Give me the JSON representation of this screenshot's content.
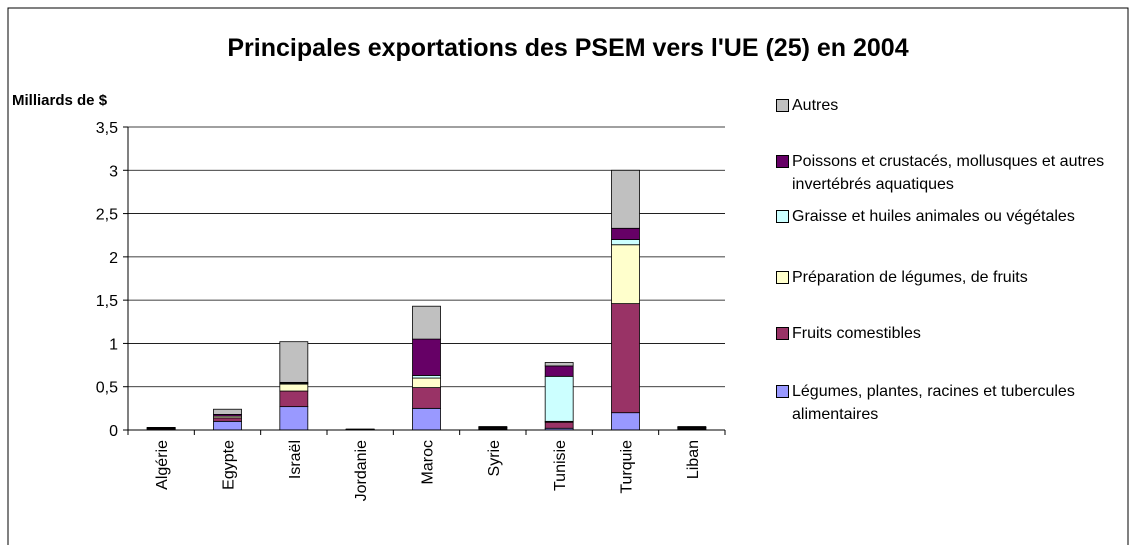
{
  "chart_data": {
    "type": "stacked_bar",
    "title": "Principales exportations des PSEM vers l'UE (25) en 2004",
    "y_label": "Milliards de $",
    "categories": [
      "Algérie",
      "Egypte",
      "Israël",
      "Jordanie",
      "Maroc",
      "Syrie",
      "Tunisie",
      "Turquie",
      "Liban"
    ],
    "series": [
      {
        "name": "Légumes, plantes, racines et tubercules alimentaires",
        "color": "#9999ff",
        "values": [
          0.005,
          0.1,
          0.27,
          0.003,
          0.25,
          0.01,
          0.02,
          0.2,
          0.01
        ]
      },
      {
        "name": "Fruits comestibles",
        "color": "#993366",
        "values": [
          0.01,
          0.04,
          0.18,
          0.002,
          0.24,
          0.01,
          0.07,
          1.26,
          0.01
        ]
      },
      {
        "name": "Préparation de légumes, de fruits",
        "color": "#ffffcc",
        "values": [
          0.005,
          0.02,
          0.08,
          0.002,
          0.11,
          0.005,
          0.01,
          0.68,
          0.005
        ]
      },
      {
        "name": "Graisse et huiles animales ou végétales",
        "color": "#ccffff",
        "values": [
          0.002,
          0.0,
          0.01,
          0.001,
          0.03,
          0.005,
          0.52,
          0.06,
          0.005
        ]
      },
      {
        "name": "Poissons et crustacés, mollusques et autres invertébrés aquatiques",
        "color": "#660066",
        "values": [
          0.005,
          0.02,
          0.01,
          0.001,
          0.42,
          0.005,
          0.12,
          0.13,
          0.002
        ]
      },
      {
        "name": "Autres",
        "color": "#c0c0c0",
        "values": [
          0.003,
          0.06,
          0.47,
          0.001,
          0.38,
          0.005,
          0.04,
          0.67,
          0.008
        ]
      }
    ],
    "ylim": [
      0,
      3.5
    ],
    "yticks": [
      0,
      {
        "value": 0.5,
        "label": "0,5"
      },
      1,
      {
        "value": 1.5,
        "label": "1,5"
      },
      2,
      {
        "value": 2.5,
        "label": "2,5"
      },
      3,
      {
        "value": 3.5,
        "label": "3,5"
      }
    ],
    "grid": true
  }
}
